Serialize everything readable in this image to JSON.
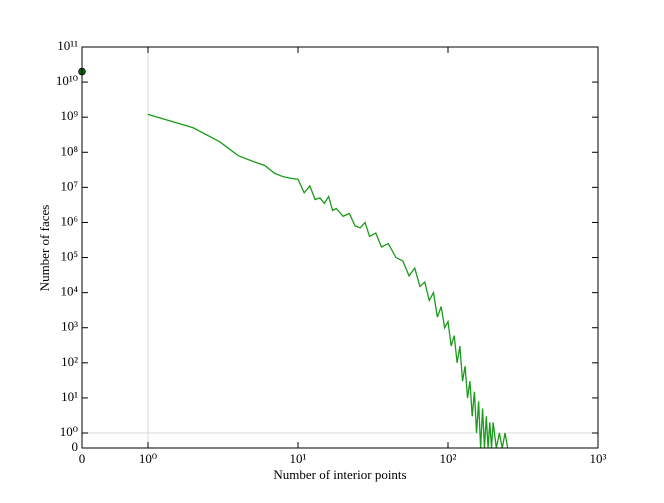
{
  "chart_data": {
    "type": "line",
    "xlabel": "Number of interior points",
    "ylabel": "Number of faces",
    "xscale": "symlog",
    "yscale": "symlog",
    "xlinthresh": 1,
    "ylinthresh": 1,
    "xlim": [
      0,
      1000
    ],
    "ylim": [
      0,
      100000000000
    ],
    "xticks": [
      0,
      {
        "value": 1,
        "label": "10⁰"
      },
      {
        "value": 10,
        "label": "10¹"
      },
      {
        "value": 100,
        "label": "10²"
      },
      {
        "value": 1000,
        "label": "10³"
      }
    ],
    "yticks": [
      0,
      {
        "value": 1,
        "label": "10⁰"
      },
      {
        "value": 10,
        "label": "10¹"
      },
      {
        "value": 100,
        "label": "10²"
      },
      {
        "value": 1000,
        "label": "10³"
      },
      {
        "value": 10000,
        "label": "10⁴"
      },
      {
        "value": 100000,
        "label": "10⁵"
      },
      {
        "value": 1000000,
        "label": "10⁶"
      },
      {
        "value": 10000000,
        "label": "10⁷"
      },
      {
        "value": 100000000,
        "label": "10⁸"
      },
      {
        "value": 1000000000,
        "label": "10⁹"
      },
      {
        "value": 10000000000,
        "label": "10¹⁰"
      },
      {
        "value": 100000000000,
        "label": "10¹¹"
      }
    ],
    "series": [
      {
        "color": "#0d5e0d",
        "marker": true,
        "x": [
          0
        ],
        "values": [
          20000000000
        ]
      },
      {
        "color": "#1a9a1a",
        "marker": false,
        "x": [
          1,
          2,
          3,
          4,
          5,
          6,
          7,
          8,
          9,
          10,
          11,
          12,
          13,
          14,
          15,
          16,
          17,
          18,
          20,
          22,
          24,
          26,
          28,
          30,
          33,
          36,
          40,
          45,
          50,
          55,
          60,
          65,
          70,
          75,
          80,
          85,
          90,
          95,
          100,
          105,
          110,
          115,
          120,
          125,
          130,
          135,
          140,
          145,
          150,
          155,
          160,
          165,
          170,
          175,
          180,
          185,
          190,
          195,
          200,
          210,
          220,
          230,
          240,
          250
        ],
        "values": [
          1200000000,
          500000000,
          200000000,
          80000000,
          55000000,
          42000000,
          25000000,
          20000000,
          18000000,
          17000000,
          7000000,
          11000000,
          4500000,
          5000000,
          3500000,
          5500000,
          2200000,
          2500000,
          1500000,
          1800000,
          800000,
          700000,
          1000000,
          400000,
          500000,
          200000,
          250000,
          100000,
          80000,
          30000,
          50000,
          15000,
          20000,
          6000,
          10000,
          2000,
          4000,
          1000,
          1500,
          300,
          600,
          100,
          300,
          30,
          80,
          10,
          30,
          3,
          15,
          1,
          8,
          0,
          5,
          0,
          3,
          0,
          2,
          0,
          2,
          0,
          1,
          0,
          1,
          0
        ]
      }
    ]
  }
}
